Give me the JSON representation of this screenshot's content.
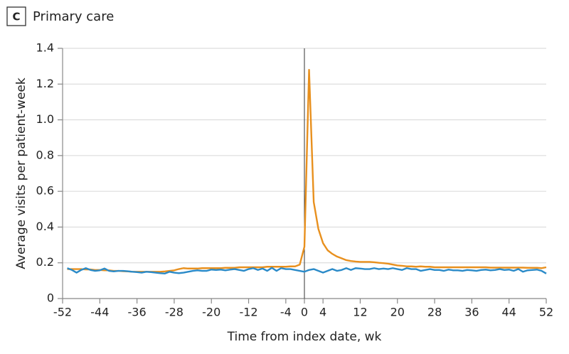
{
  "chart_data": {
    "type": "line",
    "panel_label": "C",
    "title": "Primary care",
    "x_label": "Time from index date, wk",
    "y_label": "Average visits per patient-week",
    "xlim": [
      -52,
      52
    ],
    "xticks": [
      -52,
      -44,
      -36,
      -28,
      -20,
      -12,
      -4,
      0,
      4,
      12,
      20,
      28,
      36,
      44,
      52
    ],
    "ylim": [
      0,
      1.4
    ],
    "yticks": [
      0,
      0.2,
      0.4,
      0.6,
      0.8,
      {
        "value": 1,
        "label": "1.0"
      },
      1.2,
      1.4
    ],
    "grid": true,
    "vline": 0,
    "x": [
      -51,
      -50,
      -49,
      -48,
      -47,
      -46,
      -45,
      -44,
      -43,
      -42,
      -41,
      -40,
      -39,
      -38,
      -37,
      -36,
      -35,
      -34,
      -33,
      -32,
      -31,
      -30,
      -29,
      -28,
      -27,
      -26,
      -25,
      -24,
      -23,
      -22,
      -21,
      -20,
      -19,
      -18,
      -17,
      -16,
      -15,
      -14,
      -13,
      -12,
      -11,
      -10,
      -9,
      -8,
      -7,
      -6,
      -5,
      -4,
      -3,
      -2,
      -1,
      0,
      1,
      2,
      3,
      4,
      5,
      6,
      7,
      8,
      9,
      10,
      11,
      12,
      13,
      14,
      15,
      16,
      17,
      18,
      19,
      20,
      21,
      22,
      23,
      24,
      25,
      26,
      27,
      28,
      29,
      30,
      31,
      32,
      33,
      34,
      35,
      36,
      37,
      38,
      39,
      40,
      41,
      42,
      43,
      44,
      45,
      46,
      47,
      48,
      49,
      50,
      51,
      52
    ],
    "series": [
      {
        "color": "#e8901e",
        "values": [
          0.165,
          0.165,
          0.165,
          0.165,
          0.163,
          0.163,
          0.16,
          0.16,
          0.158,
          0.158,
          0.155,
          0.155,
          0.153,
          0.152,
          0.15,
          0.15,
          0.15,
          0.15,
          0.15,
          0.15,
          0.15,
          0.152,
          0.155,
          0.158,
          0.165,
          0.17,
          0.168,
          0.168,
          0.168,
          0.17,
          0.17,
          0.17,
          0.17,
          0.17,
          0.172,
          0.172,
          0.172,
          0.175,
          0.175,
          0.175,
          0.175,
          0.175,
          0.175,
          0.178,
          0.178,
          0.178,
          0.178,
          0.178,
          0.18,
          0.18,
          0.19,
          0.29,
          1.28,
          0.54,
          0.39,
          0.31,
          0.27,
          0.25,
          0.235,
          0.225,
          0.215,
          0.21,
          0.207,
          0.205,
          0.205,
          0.205,
          0.203,
          0.2,
          0.198,
          0.195,
          0.19,
          0.185,
          0.183,
          0.18,
          0.18,
          0.178,
          0.18,
          0.178,
          0.178,
          0.175,
          0.175,
          0.175,
          0.175,
          0.175,
          0.175,
          0.175,
          0.175,
          0.175,
          0.175,
          0.175,
          0.175,
          0.173,
          0.173,
          0.173,
          0.173,
          0.173,
          0.173,
          0.173,
          0.173,
          0.172,
          0.172,
          0.172,
          0.17,
          0.175
        ]
      },
      {
        "color": "#2a8ac8",
        "values": [
          0.17,
          0.16,
          0.145,
          0.16,
          0.17,
          0.16,
          0.155,
          0.158,
          0.168,
          0.155,
          0.152,
          0.155,
          0.155,
          0.153,
          0.15,
          0.148,
          0.145,
          0.15,
          0.148,
          0.145,
          0.142,
          0.14,
          0.15,
          0.145,
          0.142,
          0.145,
          0.15,
          0.155,
          0.158,
          0.155,
          0.155,
          0.162,
          0.16,
          0.162,
          0.158,
          0.162,
          0.165,
          0.16,
          0.155,
          0.165,
          0.17,
          0.16,
          0.168,
          0.155,
          0.172,
          0.155,
          0.17,
          0.165,
          0.165,
          0.16,
          0.155,
          0.15,
          0.16,
          0.165,
          0.155,
          0.145,
          0.155,
          0.165,
          0.155,
          0.16,
          0.17,
          0.16,
          0.17,
          0.168,
          0.165,
          0.165,
          0.17,
          0.165,
          0.168,
          0.165,
          0.17,
          0.165,
          0.16,
          0.17,
          0.165,
          0.165,
          0.155,
          0.16,
          0.165,
          0.16,
          0.16,
          0.155,
          0.162,
          0.158,
          0.158,
          0.155,
          0.16,
          0.158,
          0.155,
          0.16,
          0.162,
          0.158,
          0.16,
          0.165,
          0.16,
          0.162,
          0.155,
          0.165,
          0.15,
          0.158,
          0.16,
          0.162,
          0.155,
          0.14
        ]
      }
    ]
  }
}
